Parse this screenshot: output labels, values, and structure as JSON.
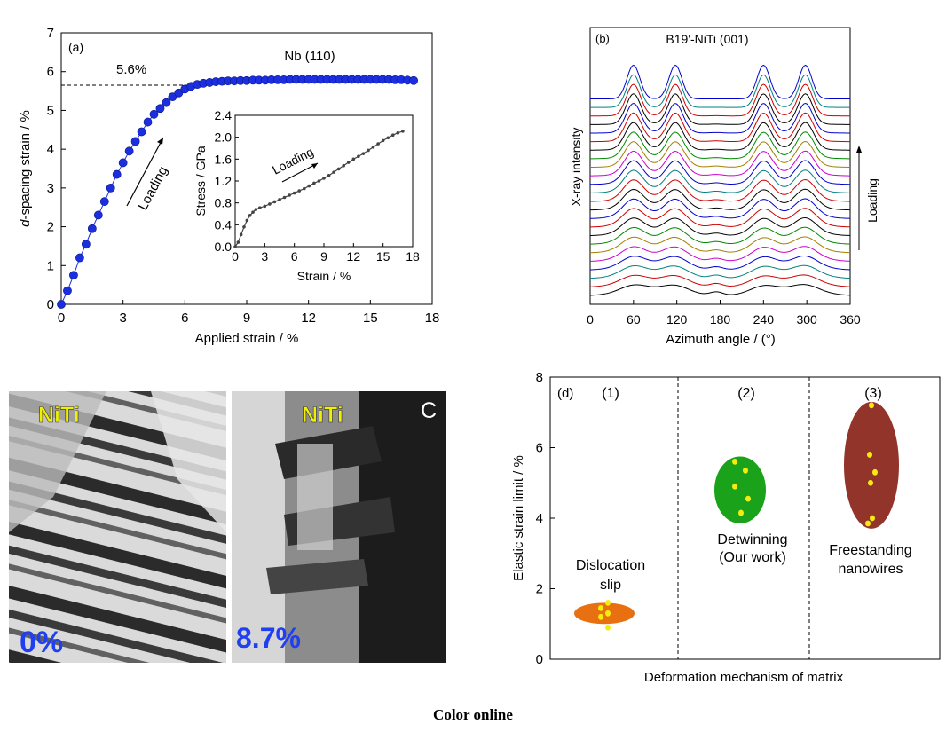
{
  "footer": {
    "caption": "Color online"
  },
  "colors": {
    "series_a": "#1c2fe0",
    "inset_line": "#444444",
    "ellipse_1": "#e87010",
    "ellipse_2": "#1aa31a",
    "ellipse_3": "#923429",
    "dots": "#f4ec10",
    "micro_label_yellow": "#f0f000",
    "micro_label_blue": "#1f3ff0",
    "profile_palette": [
      "#000000",
      "#cc0000",
      "#008080",
      "#0000cc",
      "#cc00cc",
      "#a08000",
      "#008800",
      "#000000",
      "#cc0000",
      "#0000cc"
    ]
  },
  "chart_data": [
    {
      "panel": "(a)",
      "type": "scatter",
      "title": "Nb (110)",
      "xlabel": "Applied strain / %",
      "ylabel": "d-spacing strain / %",
      "xlim": [
        0,
        18
      ],
      "ylim": [
        0,
        7
      ],
      "xticks": [
        "0",
        "3",
        "6",
        "9",
        "12",
        "15",
        "18"
      ],
      "yticks": [
        "0",
        "1",
        "2",
        "3",
        "4",
        "5",
        "6",
        "7"
      ],
      "annotations": {
        "plateau_label": "5.6%",
        "plateau_value": 5.65,
        "arrow_label": "Loading"
      },
      "series": [
        {
          "x": [
            0,
            0.3,
            0.6,
            0.9,
            1.2,
            1.5,
            1.8,
            2.1,
            2.4,
            2.7,
            3,
            3.3,
            3.6,
            3.9,
            4.2,
            4.5,
            4.8,
            5.1,
            5.4,
            5.7,
            6,
            6.3,
            6.6,
            6.9,
            7.2,
            7.5,
            7.8,
            8.1,
            8.4,
            8.7,
            9,
            9.3,
            9.6,
            9.9,
            10.2,
            10.5,
            10.8,
            11.1,
            11.4,
            11.7,
            12,
            12.3,
            12.6,
            12.9,
            13.2,
            13.5,
            13.8,
            14.1,
            14.4,
            14.7,
            15,
            15.3,
            15.6,
            15.9,
            16.2,
            16.5,
            16.8,
            17.1
          ],
          "y": [
            0,
            0.35,
            0.75,
            1.2,
            1.55,
            1.95,
            2.3,
            2.65,
            3.0,
            3.35,
            3.65,
            3.95,
            4.2,
            4.45,
            4.7,
            4.9,
            5.05,
            5.2,
            5.35,
            5.45,
            5.55,
            5.62,
            5.67,
            5.7,
            5.72,
            5.74,
            5.75,
            5.76,
            5.76,
            5.77,
            5.77,
            5.78,
            5.78,
            5.78,
            5.79,
            5.79,
            5.79,
            5.8,
            5.8,
            5.8,
            5.8,
            5.8,
            5.8,
            5.8,
            5.8,
            5.8,
            5.8,
            5.8,
            5.8,
            5.8,
            5.8,
            5.8,
            5.8,
            5.8,
            5.79,
            5.79,
            5.78,
            5.77
          ]
        }
      ]
    },
    {
      "panel": "(a) inset",
      "type": "line",
      "xlabel": "Strain / %",
      "ylabel": "Stress / GPa",
      "xlim": [
        0,
        18
      ],
      "ylim": [
        0,
        2.4
      ],
      "xticks": [
        "0",
        "3",
        "6",
        "9",
        "12",
        "15",
        "18"
      ],
      "yticks": [
        "0.0",
        "0.4",
        "0.8",
        "1.2",
        "1.6",
        "2.0",
        "2.4"
      ],
      "annotations": {
        "arrow_label": "Loading"
      },
      "series": [
        {
          "x": [
            0,
            0.3,
            0.6,
            0.9,
            1.2,
            1.5,
            1.8,
            2.1,
            2.5,
            3,
            3.5,
            4,
            4.5,
            5,
            5.5,
            6,
            6.5,
            7,
            7.5,
            8,
            8.5,
            9,
            9.5,
            10,
            10.5,
            11,
            11.5,
            12,
            12.5,
            13,
            13.5,
            14,
            14.5,
            15,
            15.5,
            16,
            16.5,
            17
          ],
          "y": [
            0,
            0.08,
            0.22,
            0.36,
            0.48,
            0.57,
            0.63,
            0.68,
            0.71,
            0.74,
            0.78,
            0.82,
            0.86,
            0.9,
            0.94,
            0.98,
            1.02,
            1.06,
            1.11,
            1.16,
            1.2,
            1.25,
            1.3,
            1.36,
            1.42,
            1.48,
            1.54,
            1.6,
            1.65,
            1.7,
            1.76,
            1.82,
            1.88,
            1.94,
            1.99,
            2.04,
            2.08,
            2.11
          ]
        }
      ]
    },
    {
      "panel": "(b)",
      "type": "line",
      "title": "B19'-NiTi (001)",
      "xlabel": "Azimuth angle / (°)",
      "ylabel": "X-ray intensity",
      "xlim": [
        0,
        360
      ],
      "xticks": [
        "0",
        "60",
        "120",
        "180",
        "240",
        "300",
        "360"
      ],
      "annotations": {
        "arrow_label": "Loading"
      },
      "peak_positions": [
        60,
        118,
        240,
        298
      ],
      "profile_count": 24
    },
    {
      "panel": "(d)",
      "type": "scatter",
      "xlabel": "Deformation mechanism of matrix",
      "ylabel": "Elastic strain limit / %",
      "ylim": [
        0,
        8
      ],
      "yticks": [
        "0",
        "2",
        "4",
        "6",
        "8"
      ],
      "groups": [
        {
          "number": "(1)",
          "label_line1": "Dislocation",
          "label_line2": "slip",
          "center": 1.3,
          "min": 1.0,
          "max": 1.6,
          "dots": [
            1.6,
            1.45,
            1.3,
            1.2,
            0.9
          ]
        },
        {
          "number": "(2)",
          "label_line1": "Detwinning",
          "label_line2": "(Our work)",
          "center": 4.8,
          "min": 3.9,
          "max": 5.8,
          "dots": [
            5.6,
            5.35,
            4.9,
            4.55,
            4.15
          ]
        },
        {
          "number": "(3)",
          "label_line1": "Freestanding",
          "label_line2": "nanowires",
          "center": 5.5,
          "min": 3.7,
          "max": 7.3,
          "dots": [
            7.2,
            5.8,
            5.3,
            5.0,
            4.0,
            3.85
          ]
        }
      ]
    }
  ],
  "micrographs": {
    "panel_label": "C",
    "left": {
      "material": "NiTi",
      "strain_label": "0%"
    },
    "right": {
      "material": "NiTi",
      "strain_label": "8.7%"
    }
  }
}
